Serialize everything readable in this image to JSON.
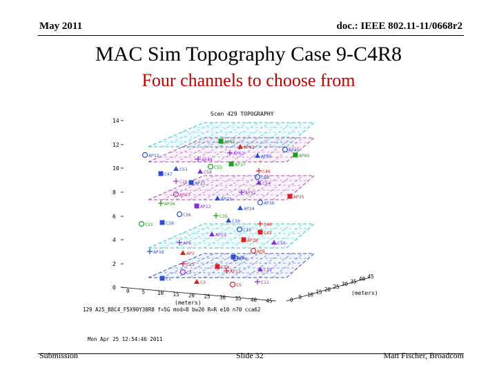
{
  "header": {
    "date": "May 2011",
    "doc": "doc.: IEEE 802.11-11/0668r2"
  },
  "title": "MAC Sim Topography Case 9-C4R8",
  "subtitle": "Four channels to choose from",
  "figure": {
    "plot_title": "Scen 429 TOPOGRAPHY",
    "y_ticks": [
      "14",
      "12",
      "10",
      "8",
      "6",
      "4",
      "2",
      "0"
    ],
    "x_ticks": [
      "0",
      "5",
      "10",
      "15",
      "20",
      "25",
      "30",
      "35",
      "40",
      "45"
    ],
    "z_ticks": [
      "0",
      "5",
      "10",
      "15",
      "20",
      "25",
      "30",
      "35",
      "40",
      "45"
    ],
    "x_label": "(meters)",
    "z_label": "(meters)",
    "params": "129 A25_B8C4_F5X90Y30R8 f=5G mod=8 bw20 R=R e10 n70 cca62",
    "timestamp": "Mon Apr 25 12:54:46 2011",
    "colors": {
      "cyan": "#2bc4c9",
      "magenta": "#b03cb0",
      "blue": "#2d4fd1",
      "red": "#e02020",
      "green": "#18a018",
      "purple": "#8a2be2"
    },
    "labels": [
      {
        "t": "AP81",
        "c": "green"
      },
      {
        "t": "AP61",
        "c": "red"
      },
      {
        "t": "AP45",
        "c": "blue"
      },
      {
        "t": "AP52",
        "c": "purple"
      },
      {
        "t": "AP65",
        "c": "green"
      },
      {
        "t": "AP56",
        "c": "blue"
      },
      {
        "t": "AP12",
        "c": "blue"
      },
      {
        "t": "AP44",
        "c": "purple"
      },
      {
        "t": "AP17",
        "c": "green"
      },
      {
        "t": "C51",
        "c": "blue"
      },
      {
        "t": "C55",
        "c": "green"
      },
      {
        "t": "C46",
        "c": "red"
      },
      {
        "t": "C47",
        "c": "blue"
      },
      {
        "t": "C58",
        "c": "purple"
      },
      {
        "t": "C60",
        "c": "blue"
      },
      {
        "t": "C26",
        "c": "magenta"
      },
      {
        "t": "AP21",
        "c": "blue"
      },
      {
        "t": "C54",
        "c": "purple"
      },
      {
        "t": "AP27",
        "c": "magenta"
      },
      {
        "t": "AP31",
        "c": "purple"
      },
      {
        "t": "AP35",
        "c": "red"
      },
      {
        "t": "AP23",
        "c": "blue"
      },
      {
        "t": "AP30",
        "c": "blue"
      },
      {
        "t": "AP20",
        "c": "green"
      },
      {
        "t": "AP22",
        "c": "purple"
      },
      {
        "t": "AP24",
        "c": "blue"
      },
      {
        "t": "C36",
        "c": "blue"
      },
      {
        "t": "C35",
        "c": "green"
      },
      {
        "t": "C28",
        "c": "blue"
      },
      {
        "t": "C39",
        "c": "blue"
      },
      {
        "t": "C21",
        "c": "green"
      },
      {
        "t": "C40",
        "c": "red"
      },
      {
        "t": "C43",
        "c": "red"
      },
      {
        "t": "AP13",
        "c": "purple"
      },
      {
        "t": "C33",
        "c": "blue"
      },
      {
        "t": "AP6",
        "c": "purple"
      },
      {
        "t": "AP10",
        "c": "red"
      },
      {
        "t": "C18",
        "c": "purple"
      },
      {
        "t": "AP8",
        "c": "red"
      },
      {
        "t": "AP16",
        "c": "blue"
      },
      {
        "t": "AP0",
        "c": "blue"
      },
      {
        "t": "AP2",
        "c": "red"
      },
      {
        "t": "AP4",
        "c": "blue"
      },
      {
        "t": "C15",
        "c": "red"
      },
      {
        "t": "C14",
        "c": "red"
      },
      {
        "t": "C19",
        "c": "purple"
      },
      {
        "t": "C7",
        "c": "purple"
      },
      {
        "t": "AP17",
        "c": "red"
      },
      {
        "t": "C1",
        "c": "blue"
      },
      {
        "t": "C3",
        "c": "red"
      },
      {
        "t": "C5",
        "c": "red"
      },
      {
        "t": "C11",
        "c": "purple"
      }
    ]
  },
  "footer": {
    "left": "Submission",
    "center": "Slide 32",
    "right": "Matt Fischer, Broadcom"
  }
}
